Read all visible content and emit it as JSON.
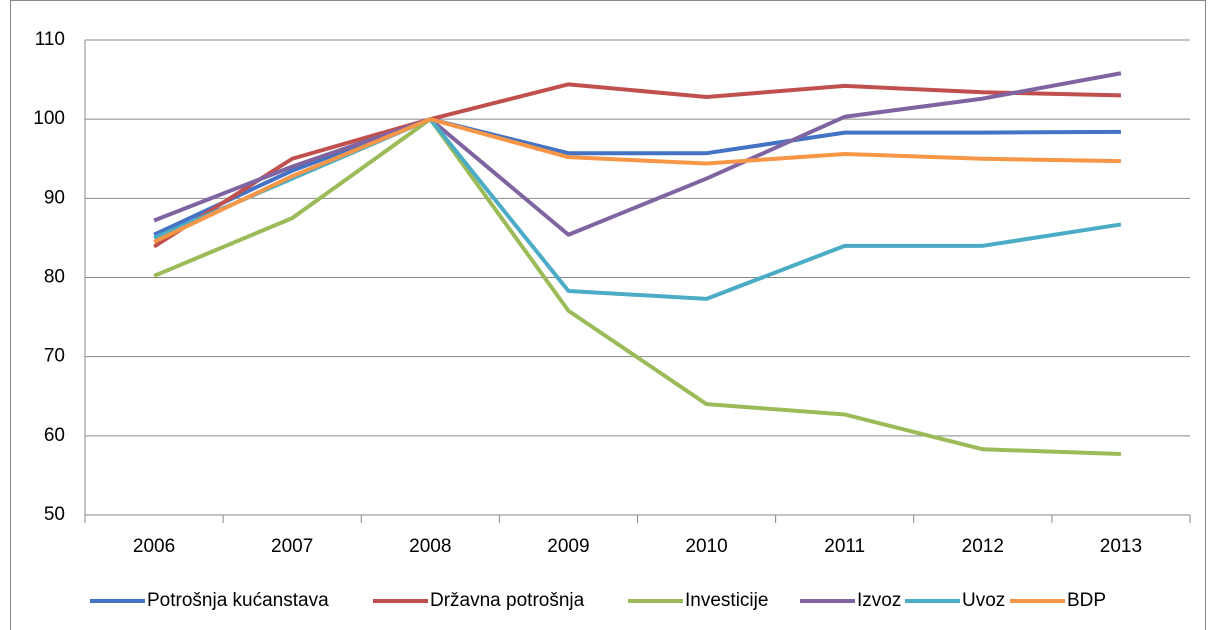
{
  "chart_data": {
    "type": "line",
    "categories": [
      "2006",
      "2007",
      "2008",
      "2009",
      "2010",
      "2011",
      "2012",
      "2013"
    ],
    "series": [
      {
        "name": "Potrošnja kućanstava",
        "color": "#4472c4",
        "values": [
          85.4,
          93.5,
          100,
          95.7,
          95.7,
          98.3,
          98.3,
          98.4
        ]
      },
      {
        "name": "Državna potrošnja",
        "color": "#c0504d",
        "values": [
          83.9,
          95,
          100,
          104.4,
          102.8,
          104.2,
          103.4,
          103
        ]
      },
      {
        "name": "Investicije",
        "color": "#9bbb59",
        "values": [
          80.2,
          87.5,
          100,
          75.8,
          64,
          62.7,
          58.3,
          57.7
        ]
      },
      {
        "name": "Izvoz",
        "color": "#8064a2",
        "values": [
          87.2,
          94,
          100,
          85.4,
          92.5,
          100.3,
          102.6,
          105.8
        ]
      },
      {
        "name": "Uvoz",
        "color": "#4bacc6",
        "values": [
          85,
          92.5,
          100,
          78.3,
          77.3,
          84,
          84,
          86.7
        ]
      },
      {
        "name": "BDP",
        "color": "#f79646",
        "values": [
          84.5,
          92.8,
          100,
          95.2,
          94.4,
          95.6,
          95,
          94.7
        ]
      }
    ],
    "ylim": [
      50,
      110
    ],
    "yticks": [
      50,
      60,
      70,
      80,
      90,
      100,
      110
    ],
    "grid": true,
    "legend": "bottom"
  }
}
